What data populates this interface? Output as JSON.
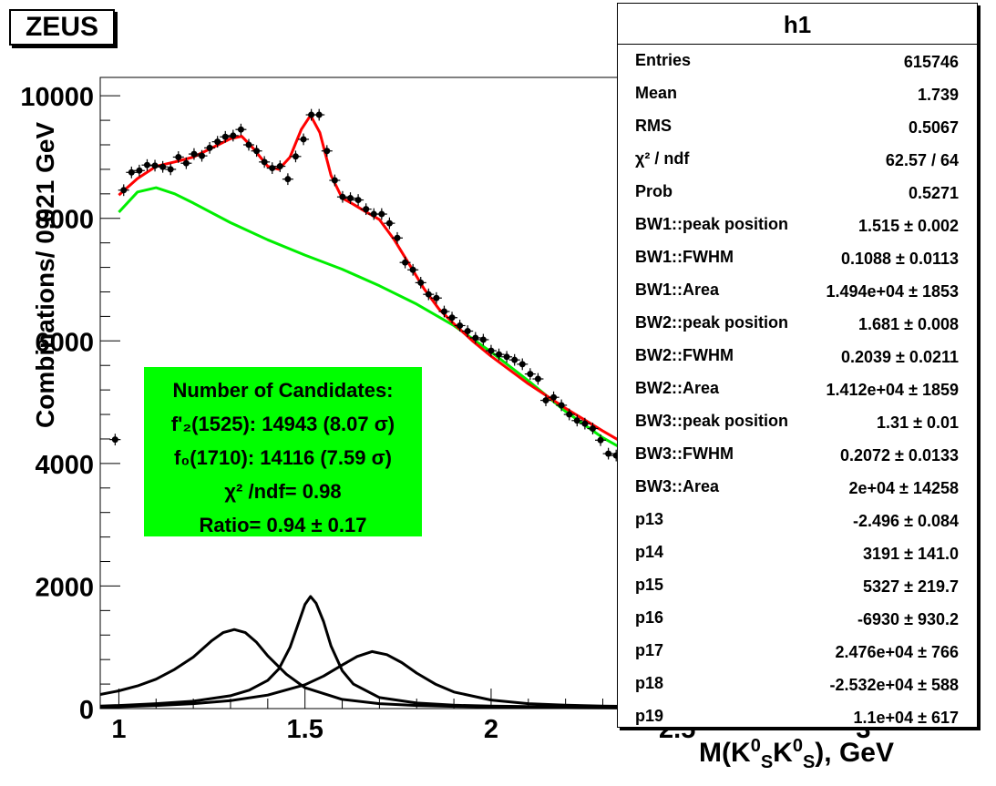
{
  "header": {
    "label": "ZEUS"
  },
  "candidates_box": {
    "line1": "Number of Candidates:",
    "f2_label": "f'₂(1525): 14943 (8.07 σ)",
    "f0_label": "f₀(1710): 14116 (7.59 σ)",
    "chi2_label": "χ² /ndf= 0.98",
    "ratio_label": "Ratio= 0.94 ± 0.17"
  },
  "stats": {
    "title": "h1",
    "rows": [
      {
        "key": "Entries",
        "value": "615746"
      },
      {
        "key": "Mean",
        "value": "1.739"
      },
      {
        "key": "RMS",
        "value": "0.5067"
      },
      {
        "key": "χ² / ndf",
        "value": "62.57 / 64"
      },
      {
        "key": "Prob",
        "value": "0.5271"
      },
      {
        "key": "BW1::peak position",
        "value": "1.515 ± 0.002"
      },
      {
        "key": "BW1::FWHM",
        "value": "0.1088 ± 0.0113"
      },
      {
        "key": "BW1::Area",
        "value": "1.494e+04 ± 1853"
      },
      {
        "key": "BW2::peak position",
        "value": "1.681 ± 0.008"
      },
      {
        "key": "BW2::FWHM",
        "value": "0.2039 ± 0.0211"
      },
      {
        "key": "BW2::Area",
        "value": "1.412e+04 ± 1859"
      },
      {
        "key": "BW3::peak position",
        "value": "1.31 ± 0.01"
      },
      {
        "key": "BW3::FWHM",
        "value": "0.2072 ± 0.0133"
      },
      {
        "key": "BW3::Area",
        "value": "2e+04 ± 14258"
      },
      {
        "key": "p13",
        "value": "-2.496 ± 0.084"
      },
      {
        "key": "p14",
        "value": "3191 ± 141.0"
      },
      {
        "key": "p15",
        "value": "5327 ± 219.7"
      },
      {
        "key": "p16",
        "value": "-6930 ± 930.2"
      },
      {
        "key": "p17",
        "value": "2.476e+04 ± 766"
      },
      {
        "key": "p18",
        "value": "-2.532e+04 ± 588"
      },
      {
        "key": "p19",
        "value": "1.1e+04 ± 617"
      }
    ]
  },
  "chart_data": {
    "type": "scatter",
    "title": "",
    "xlabel": "M(K⁰S K⁰S), GeV",
    "ylabel": "Combinations/ 0.021 GeV",
    "xlim": [
      0.95,
      3.3
    ],
    "ylim": [
      0,
      10300
    ],
    "x_ticks": [
      1,
      1.5,
      2,
      2.5,
      3
    ],
    "x_tick_labels": [
      "1",
      "1.5",
      "2",
      "2.5",
      "3"
    ],
    "y_ticks": [
      0,
      2000,
      4000,
      6000,
      8000,
      10000
    ],
    "y_tick_labels": [
      "0",
      "2000",
      "4000",
      "6000",
      "8000",
      "10000"
    ],
    "grid": false,
    "colors": {
      "data": "#000000",
      "total_fit": "#ff0000",
      "background_fit": "#00ee00",
      "resonances": "#000000"
    },
    "data_points": [
      [
        0.99,
        4390
      ],
      [
        1.013,
        8460
      ],
      [
        1.034,
        8750
      ],
      [
        1.055,
        8780
      ],
      [
        1.076,
        8870
      ],
      [
        1.097,
        8860
      ],
      [
        1.118,
        8840
      ],
      [
        1.139,
        8800
      ],
      [
        1.16,
        9000
      ],
      [
        1.181,
        8900
      ],
      [
        1.202,
        9050
      ],
      [
        1.223,
        9020
      ],
      [
        1.244,
        9150
      ],
      [
        1.265,
        9250
      ],
      [
        1.286,
        9330
      ],
      [
        1.307,
        9350
      ],
      [
        1.328,
        9450
      ],
      [
        1.349,
        9200
      ],
      [
        1.37,
        9100
      ],
      [
        1.391,
        8920
      ],
      [
        1.412,
        8820
      ],
      [
        1.433,
        8850
      ],
      [
        1.454,
        8640
      ],
      [
        1.475,
        9010
      ],
      [
        1.496,
        9290
      ],
      [
        1.517,
        9690
      ],
      [
        1.538,
        9690
      ],
      [
        1.559,
        9100
      ],
      [
        1.58,
        8620
      ],
      [
        1.601,
        8350
      ],
      [
        1.622,
        8330
      ],
      [
        1.643,
        8300
      ],
      [
        1.664,
        8150
      ],
      [
        1.685,
        8070
      ],
      [
        1.706,
        8070
      ],
      [
        1.727,
        7920
      ],
      [
        1.748,
        7680
      ],
      [
        1.769,
        7280
      ],
      [
        1.79,
        7160
      ],
      [
        1.811,
        6950
      ],
      [
        1.832,
        6760
      ],
      [
        1.853,
        6700
      ],
      [
        1.874,
        6480
      ],
      [
        1.895,
        6380
      ],
      [
        1.916,
        6250
      ],
      [
        1.937,
        6160
      ],
      [
        1.958,
        6050
      ],
      [
        1.979,
        6020
      ],
      [
        2.0,
        5840
      ],
      [
        2.021,
        5780
      ],
      [
        2.042,
        5740
      ],
      [
        2.063,
        5690
      ],
      [
        2.084,
        5620
      ],
      [
        2.105,
        5460
      ],
      [
        2.126,
        5380
      ],
      [
        2.147,
        5030
      ],
      [
        2.168,
        5080
      ],
      [
        2.189,
        4950
      ],
      [
        2.21,
        4800
      ],
      [
        2.231,
        4700
      ],
      [
        2.252,
        4650
      ],
      [
        2.273,
        4570
      ],
      [
        2.294,
        4380
      ],
      [
        2.315,
        4160
      ],
      [
        2.336,
        4130
      ]
    ],
    "series": [
      {
        "x": [
          1.0,
          1.05,
          1.1,
          1.15,
          1.2,
          1.25,
          1.3,
          1.33,
          1.36,
          1.4,
          1.43,
          1.46,
          1.49,
          1.515,
          1.54,
          1.57,
          1.6,
          1.63,
          1.66,
          1.7,
          1.74,
          1.78,
          1.82,
          1.86,
          1.9,
          1.95,
          2.0,
          2.1,
          2.2,
          2.3,
          2.4
        ],
        "y": [
          8380,
          8650,
          8850,
          8920,
          9000,
          9150,
          9300,
          9340,
          9150,
          8850,
          8800,
          9000,
          9450,
          9680,
          9400,
          8700,
          8330,
          8230,
          8120,
          7980,
          7650,
          7250,
          6850,
          6520,
          6280,
          6000,
          5750,
          5300,
          4900,
          4530,
          4180
        ]
      },
      {
        "x": [
          1.0,
          1.05,
          1.1,
          1.15,
          1.2,
          1.3,
          1.4,
          1.5,
          1.6,
          1.7,
          1.8,
          1.9,
          2.0,
          2.1,
          2.2,
          2.3,
          2.4
        ],
        "y": [
          8100,
          8430,
          8500,
          8400,
          8250,
          7930,
          7650,
          7400,
          7170,
          6900,
          6600,
          6250,
          5820,
          5350,
          4850,
          4420,
          4080
        ]
      },
      {
        "x": [
          0.95,
          1.0,
          1.05,
          1.1,
          1.15,
          1.2,
          1.25,
          1.28,
          1.31,
          1.34,
          1.37,
          1.4,
          1.45,
          1.5,
          1.6,
          1.7,
          1.8,
          1.9,
          2.0,
          2.1,
          2.2,
          2.3,
          2.5
        ],
        "y": [
          230,
          290,
          370,
          480,
          640,
          840,
          1110,
          1240,
          1290,
          1240,
          1080,
          860,
          560,
          340,
          150,
          80,
          50,
          35,
          25,
          20,
          15,
          10,
          5
        ]
      },
      {
        "x": [
          0.95,
          1.0,
          1.1,
          1.2,
          1.3,
          1.35,
          1.4,
          1.43,
          1.46,
          1.48,
          1.5,
          1.515,
          1.53,
          1.55,
          1.57,
          1.6,
          1.63,
          1.7,
          1.8,
          1.9,
          2.0,
          2.2,
          2.5
        ],
        "y": [
          40,
          50,
          80,
          120,
          210,
          300,
          460,
          650,
          1000,
          1350,
          1700,
          1830,
          1720,
          1420,
          1020,
          620,
          400,
          180,
          90,
          55,
          40,
          25,
          15
        ]
      },
      {
        "x": [
          0.95,
          1.0,
          1.1,
          1.2,
          1.3,
          1.4,
          1.5,
          1.55,
          1.6,
          1.64,
          1.68,
          1.72,
          1.76,
          1.8,
          1.85,
          1.9,
          2.0,
          2.1,
          2.2,
          2.3,
          2.5,
          2.8,
          3.1,
          3.3
        ],
        "y": [
          20,
          30,
          50,
          80,
          130,
          220,
          390,
          530,
          710,
          850,
          930,
          880,
          750,
          580,
          400,
          270,
          140,
          80,
          55,
          40,
          25,
          15,
          10,
          8
        ]
      }
    ]
  }
}
